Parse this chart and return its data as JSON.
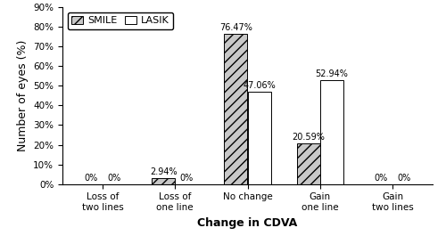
{
  "categories": [
    "Loss of\ntwo lines",
    "Loss of\none line",
    "No change",
    "Gain\none line",
    "Gain\ntwo lines"
  ],
  "smile_values": [
    0.0,
    2.94,
    76.47,
    20.59,
    0.0
  ],
  "lasik_values": [
    0.0,
    0.0,
    47.06,
    52.94,
    0.0
  ],
  "smile_labels": [
    "0%",
    "2.94%",
    "76.47%",
    "20.59%",
    "0%"
  ],
  "lasik_labels": [
    "0%",
    "0%",
    "47.06%",
    "52.94%",
    "0%"
  ],
  "ylabel": "Number of eyes (%)",
  "xlabel": "Change in CDVA",
  "ylim": [
    0,
    90
  ],
  "yticks": [
    0,
    10,
    20,
    30,
    40,
    50,
    60,
    70,
    80,
    90
  ],
  "ytick_labels": [
    "0%",
    "10%",
    "20%",
    "30%",
    "40%",
    "50%",
    "60%",
    "70%",
    "80%",
    "90%"
  ],
  "legend_labels": [
    "SMILE",
    "LASIK"
  ],
  "bar_width": 0.32,
  "hatch_smile": "///",
  "hatch_lasik": "",
  "smile_facecolor": "#c8c8c8",
  "lasik_facecolor": "#ffffff",
  "edgecolor": "#000000",
  "background_color": "#ffffff",
  "label_fontsize": 7.0,
  "axis_label_fontsize": 9,
  "tick_fontsize": 7.5,
  "legend_fontsize": 8
}
